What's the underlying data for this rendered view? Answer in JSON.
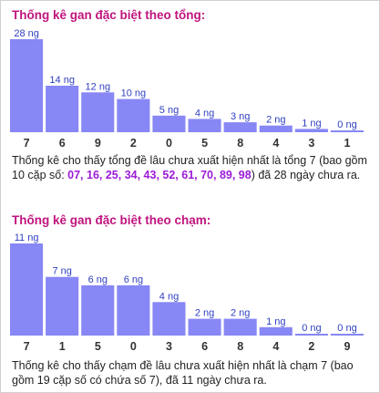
{
  "colors": {
    "title": "#c0147e",
    "bar": "#8787f5",
    "value_label": "#2f3fc0",
    "highlight": "#9c1bd6"
  },
  "section1": {
    "title": "Thống kê gan đặc biệt theo tổng:",
    "note_prefix": "Thống kê cho thấy tổng đề lâu chưa xuất hiện nhất là tổng 7 (bao gồm 10 cặp số: ",
    "note_highlight": "07, 16, 25, 34, 43, 52, 61, 70, 89, 98",
    "note_suffix": ") đã 28 ngày chưa ra."
  },
  "section2": {
    "title": "Thống kê gan đặc biệt theo chạm:",
    "note": "Thống kê cho thấy chạm đề lâu chưa xuất hiện nhất là chạm 7 (bao gồm 19 cặp số có chứa số 7), đã 11 ngày chưa ra."
  },
  "chart_data": [
    {
      "type": "bar",
      "title": "Thống kê gan đặc biệt theo tổng:",
      "categories": [
        "7",
        "6",
        "9",
        "2",
        "0",
        "5",
        "8",
        "4",
        "3",
        "1"
      ],
      "values": [
        28,
        14,
        12,
        10,
        5,
        4,
        3,
        2,
        1,
        0
      ],
      "value_labels": [
        "28 ng",
        "14 ng",
        "12 ng",
        "10 ng",
        "5 ng",
        "4 ng",
        "3 ng",
        "2 ng",
        "1 ng",
        "0 ng"
      ],
      "ylim": [
        0,
        28
      ],
      "grid": false
    },
    {
      "type": "bar",
      "title": "Thống kê gan đặc biệt theo chạm:",
      "categories": [
        "7",
        "1",
        "5",
        "0",
        "3",
        "6",
        "8",
        "4",
        "2",
        "9"
      ],
      "values": [
        11,
        7,
        6,
        6,
        4,
        2,
        2,
        1,
        0,
        0
      ],
      "value_labels": [
        "11 ng",
        "7 ng",
        "6 ng",
        "6 ng",
        "4 ng",
        "2 ng",
        "2 ng",
        "1 ng",
        "0 ng",
        "0 ng"
      ],
      "ylim": [
        0,
        11
      ],
      "grid": false
    }
  ]
}
